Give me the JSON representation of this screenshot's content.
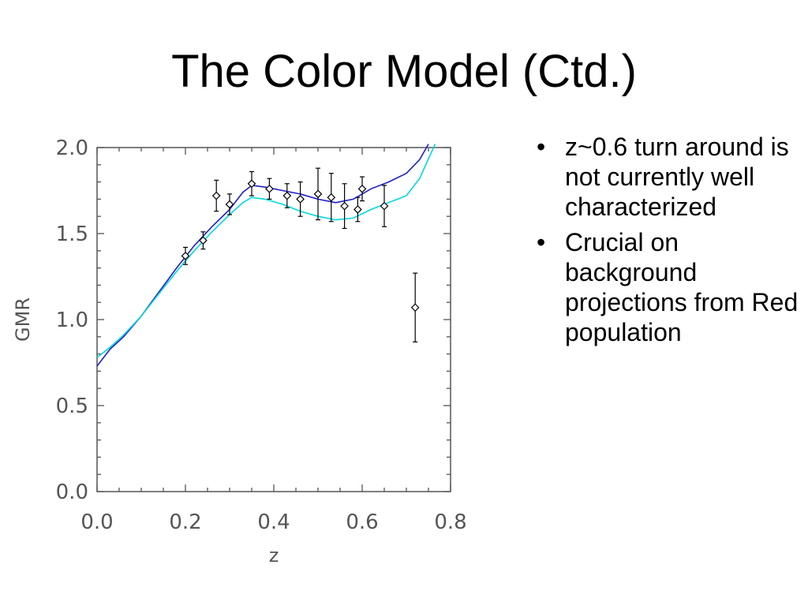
{
  "slide": {
    "title": "The Color Model (Ctd.)",
    "bullets": [
      "z~0.6 turn around is not currently well characterized",
      "Crucial on background projections from Red population"
    ]
  },
  "chart_data": {
    "type": "scatter",
    "title": "",
    "xlabel": "z",
    "ylabel": "GMR",
    "xlim": [
      0.0,
      0.8
    ],
    "ylim": [
      0.0,
      2.0
    ],
    "xticks": [
      "0.0",
      "0.2",
      "0.4",
      "0.6",
      "0.8"
    ],
    "yticks": [
      "0.0",
      "0.5",
      "1.0",
      "1.5",
      "2.0"
    ],
    "grid": false,
    "legend": "none",
    "points": {
      "name": "",
      "color": "#000000",
      "marker": "diamond",
      "x": [
        0.2,
        0.24,
        0.27,
        0.3,
        0.35,
        0.39,
        0.43,
        0.46,
        0.5,
        0.53,
        0.56,
        0.59,
        0.6,
        0.65,
        0.72
      ],
      "y": [
        1.37,
        1.46,
        1.72,
        1.67,
        1.79,
        1.76,
        1.72,
        1.7,
        1.73,
        1.71,
        1.66,
        1.64,
        1.76,
        1.66,
        1.07
      ],
      "yerr": [
        0.05,
        0.05,
        0.09,
        0.06,
        0.07,
        0.06,
        0.07,
        0.1,
        0.15,
        0.14,
        0.13,
        0.07,
        0.07,
        0.12,
        0.2
      ]
    },
    "series": [
      {
        "name": "",
        "color": "#1f1fc8",
        "x": [
          0.0,
          0.03,
          0.06,
          0.1,
          0.14,
          0.18,
          0.22,
          0.26,
          0.3,
          0.33,
          0.35,
          0.38,
          0.42,
          0.46,
          0.5,
          0.54,
          0.58,
          0.62,
          0.66,
          0.7,
          0.73,
          0.75
        ],
        "y": [
          0.73,
          0.83,
          0.9,
          1.02,
          1.16,
          1.3,
          1.43,
          1.54,
          1.64,
          1.74,
          1.78,
          1.77,
          1.75,
          1.73,
          1.7,
          1.68,
          1.7,
          1.76,
          1.8,
          1.85,
          1.93,
          2.02
        ]
      },
      {
        "name": "",
        "color": "#00d8e0",
        "x": [
          0.0,
          0.03,
          0.06,
          0.1,
          0.14,
          0.18,
          0.22,
          0.26,
          0.3,
          0.33,
          0.35,
          0.38,
          0.42,
          0.46,
          0.5,
          0.54,
          0.58,
          0.62,
          0.66,
          0.7,
          0.73,
          0.765
        ],
        "y": [
          0.78,
          0.84,
          0.91,
          1.02,
          1.15,
          1.28,
          1.4,
          1.51,
          1.61,
          1.68,
          1.71,
          1.7,
          1.67,
          1.63,
          1.6,
          1.58,
          1.59,
          1.64,
          1.68,
          1.72,
          1.82,
          2.02
        ]
      }
    ]
  }
}
